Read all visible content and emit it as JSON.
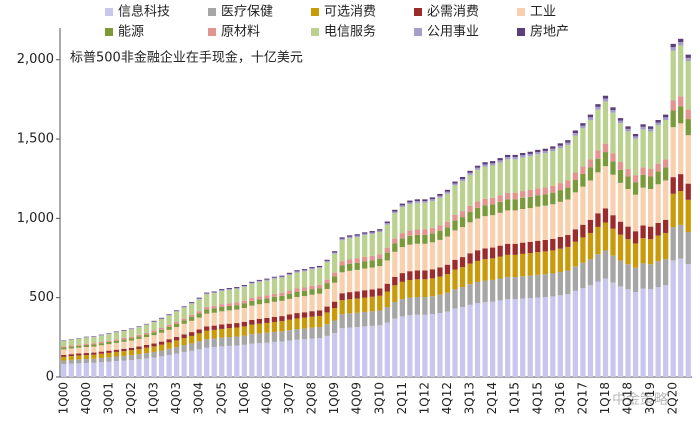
{
  "chart_data": {
    "type": "stacked_bar",
    "annotation": "标普500非金融企业在手现金，十亿美元",
    "watermark": "中金策略",
    "categories": [
      "1Q00",
      null,
      null,
      "4Q00",
      null,
      null,
      "3Q01",
      null,
      null,
      "2Q02",
      null,
      null,
      "1Q03",
      null,
      null,
      "4Q03",
      null,
      null,
      "3Q04",
      null,
      null,
      "2Q05",
      null,
      null,
      "1Q06",
      null,
      null,
      "4Q06",
      null,
      null,
      "3Q07",
      null,
      null,
      "2Q08",
      null,
      null,
      "1Q09",
      null,
      null,
      "4Q09",
      null,
      null,
      "3Q10",
      null,
      null,
      "2Q11",
      null,
      null,
      "1Q12",
      null,
      null,
      "4Q12",
      null,
      null,
      "3Q13",
      null,
      null,
      "2Q14",
      null,
      null,
      "1Q15",
      null,
      null,
      "4Q15",
      null,
      null,
      "3Q16",
      null,
      null,
      "2Q17",
      null,
      null,
      "1Q18",
      null,
      null,
      "4Q18",
      null,
      null,
      "3Q19",
      null,
      null,
      "2Q20",
      null,
      null
    ],
    "ylim": [
      0,
      2200
    ],
    "yticks": [
      0,
      500,
      {
        "value": 1000,
        "label": "1,000"
      },
      {
        "value": 1500,
        "label": "1,500"
      },
      {
        "value": 2000,
        "label": "2,000"
      }
    ],
    "series": [
      {
        "name": "信息科技",
        "color": "#c9c6ee",
        "values": [
          81,
          84,
          86,
          88,
          89,
          93,
          96,
          100,
          103,
          107,
          112,
          117,
          123,
          130,
          138,
          147,
          156,
          165,
          175,
          186,
          189,
          193,
          196,
          198,
          203,
          210,
          214,
          217,
          221,
          224,
          229,
          235,
          238,
          242,
          245,
          259,
          277,
          308,
          312,
          315,
          319,
          322,
          326,
          343,
          368,
          382,
          389,
          392,
          392,
          396,
          403,
          413,
          431,
          441,
          455,
          466,
          473,
          476,
          483,
          490,
          490,
          494,
          497,
          501,
          504,
          508,
          515,
          522,
          543,
          560,
          578,
          602,
          620,
          595,
          571,
          553,
          536,
          557,
          553,
          567,
          578,
          735,
          746,
          711
        ]
      },
      {
        "name": "医疗保健",
        "color": "#a6a6a6",
        "values": [
          23,
          24,
          25,
          25,
          26,
          27,
          28,
          29,
          30,
          31,
          32,
          34,
          35,
          37,
          40,
          42,
          45,
          47,
          50,
          53,
          54,
          55,
          56,
          57,
          58,
          60,
          61,
          62,
          63,
          64,
          66,
          67,
          68,
          69,
          70,
          74,
          79,
          88,
          89,
          90,
          91,
          92,
          93,
          98,
          105,
          109,
          111,
          112,
          112,
          113,
          115,
          118,
          123,
          126,
          130,
          133,
          135,
          136,
          138,
          140,
          140,
          141,
          142,
          143,
          144,
          145,
          147,
          149,
          155,
          160,
          165,
          172,
          177,
          170,
          163,
          158,
          153,
          159,
          158,
          162,
          165,
          210,
          213,
          203
        ]
      },
      {
        "name": "可选消费",
        "color": "#c99a0a",
        "values": [
          23,
          24,
          25,
          25,
          26,
          27,
          28,
          29,
          30,
          31,
          32,
          34,
          35,
          37,
          40,
          42,
          45,
          47,
          50,
          53,
          54,
          55,
          56,
          57,
          58,
          60,
          61,
          62,
          63,
          64,
          66,
          67,
          68,
          69,
          70,
          74,
          79,
          88,
          89,
          90,
          91,
          92,
          93,
          98,
          105,
          109,
          111,
          112,
          112,
          113,
          115,
          118,
          123,
          126,
          130,
          133,
          135,
          136,
          138,
          140,
          140,
          141,
          142,
          143,
          144,
          145,
          147,
          149,
          155,
          160,
          165,
          172,
          177,
          170,
          163,
          158,
          153,
          159,
          158,
          162,
          165,
          210,
          213,
          203
        ]
      },
      {
        "name": "必需消费",
        "color": "#9c2b2b",
        "values": [
          12,
          12,
          12,
          13,
          13,
          13,
          14,
          14,
          15,
          15,
          16,
          17,
          18,
          19,
          20,
          21,
          22,
          24,
          25,
          27,
          27,
          28,
          28,
          28,
          29,
          30,
          31,
          31,
          32,
          32,
          33,
          34,
          34,
          35,
          35,
          37,
          40,
          44,
          45,
          45,
          46,
          46,
          47,
          49,
          53,
          55,
          56,
          56,
          56,
          57,
          58,
          59,
          62,
          63,
          65,
          67,
          68,
          68,
          69,
          70,
          70,
          71,
          71,
          72,
          72,
          73,
          74,
          75,
          78,
          80,
          83,
          86,
          89,
          85,
          82,
          79,
          77,
          80,
          79,
          81,
          83,
          105,
          107,
          102
        ]
      },
      {
        "name": "工业",
        "color": "#f8d0ae",
        "values": [
          35,
          36,
          37,
          38,
          38,
          40,
          41,
          43,
          44,
          46,
          48,
          50,
          53,
          56,
          59,
          63,
          67,
          71,
          75,
          80,
          81,
          83,
          84,
          85,
          87,
          90,
          92,
          93,
          95,
          96,
          98,
          101,
          102,
          104,
          105,
          111,
          119,
          132,
          134,
          135,
          137,
          138,
          140,
          147,
          158,
          164,
          167,
          168,
          168,
          170,
          173,
          177,
          185,
          189,
          195,
          200,
          203,
          204,
          207,
          210,
          210,
          212,
          213,
          215,
          216,
          218,
          221,
          224,
          233,
          240,
          248,
          258,
          266,
          255,
          245,
          237,
          230,
          239,
          237,
          243,
          248,
          315,
          320,
          305
        ]
      },
      {
        "name": "能源",
        "color": "#7b9b3b",
        "values": [
          12,
          12,
          12,
          13,
          13,
          13,
          14,
          14,
          15,
          15,
          16,
          17,
          18,
          19,
          20,
          21,
          22,
          24,
          25,
          27,
          27,
          28,
          28,
          28,
          29,
          30,
          31,
          31,
          32,
          32,
          33,
          34,
          34,
          35,
          35,
          37,
          40,
          44,
          45,
          45,
          46,
          46,
          47,
          49,
          53,
          55,
          56,
          56,
          56,
          57,
          58,
          59,
          62,
          63,
          65,
          67,
          68,
          68,
          69,
          70,
          70,
          71,
          71,
          72,
          72,
          73,
          74,
          75,
          78,
          80,
          83,
          86,
          89,
          85,
          82,
          79,
          77,
          80,
          79,
          81,
          83,
          105,
          107,
          102
        ]
      },
      {
        "name": "原材料",
        "color": "#e3948f",
        "values": [
          7,
          7,
          7,
          8,
          8,
          8,
          8,
          9,
          9,
          9,
          10,
          10,
          11,
          11,
          12,
          13,
          13,
          14,
          15,
          16,
          16,
          17,
          17,
          17,
          17,
          18,
          18,
          19,
          19,
          19,
          20,
          20,
          20,
          21,
          21,
          22,
          24,
          26,
          27,
          27,
          27,
          28,
          28,
          29,
          32,
          33,
          33,
          34,
          34,
          34,
          35,
          35,
          37,
          38,
          39,
          40,
          41,
          41,
          41,
          42,
          42,
          42,
          43,
          43,
          43,
          44,
          44,
          45,
          47,
          48,
          50,
          52,
          53,
          51,
          49,
          47,
          46,
          48,
          47,
          49,
          50,
          63,
          64,
          61
        ]
      },
      {
        "name": "电信服务",
        "color": "#bad190",
        "values": [
          35,
          36,
          37,
          38,
          38,
          40,
          41,
          43,
          44,
          46,
          48,
          50,
          53,
          56,
          59,
          63,
          67,
          71,
          75,
          80,
          81,
          83,
          84,
          85,
          87,
          90,
          92,
          93,
          95,
          96,
          98,
          101,
          102,
          104,
          105,
          111,
          119,
          132,
          134,
          135,
          137,
          138,
          140,
          147,
          158,
          164,
          167,
          168,
          168,
          170,
          173,
          177,
          185,
          189,
          195,
          200,
          203,
          204,
          207,
          210,
          210,
          212,
          213,
          215,
          216,
          218,
          221,
          224,
          233,
          240,
          248,
          258,
          266,
          255,
          245,
          237,
          230,
          239,
          237,
          243,
          248,
          315,
          320,
          305
        ]
      },
      {
        "name": "公用事业",
        "color": "#a59ec9",
        "values": [
          2,
          2,
          2,
          3,
          3,
          3,
          3,
          3,
          3,
          3,
          3,
          3,
          4,
          4,
          4,
          4,
          4,
          5,
          5,
          5,
          5,
          6,
          6,
          6,
          6,
          6,
          6,
          6,
          6,
          6,
          7,
          7,
          7,
          7,
          7,
          7,
          8,
          9,
          9,
          9,
          9,
          9,
          9,
          10,
          11,
          11,
          11,
          11,
          11,
          11,
          12,
          12,
          12,
          13,
          13,
          13,
          14,
          14,
          14,
          14,
          14,
          14,
          14,
          14,
          14,
          15,
          15,
          15,
          16,
          16,
          17,
          17,
          18,
          17,
          16,
          16,
          15,
          16,
          16,
          16,
          17,
          21,
          21,
          20
        ]
      },
      {
        "name": "房地产",
        "color": "#5c3e7b",
        "values": [
          2,
          2,
          2,
          3,
          3,
          3,
          3,
          3,
          3,
          3,
          3,
          3,
          4,
          4,
          4,
          4,
          4,
          5,
          5,
          5,
          5,
          6,
          6,
          6,
          6,
          6,
          6,
          6,
          6,
          6,
          7,
          7,
          7,
          7,
          7,
          7,
          8,
          9,
          9,
          9,
          9,
          9,
          9,
          10,
          11,
          11,
          11,
          11,
          11,
          11,
          12,
          12,
          12,
          13,
          13,
          13,
          14,
          14,
          14,
          14,
          14,
          14,
          14,
          14,
          14,
          15,
          15,
          15,
          16,
          16,
          17,
          17,
          18,
          17,
          16,
          16,
          15,
          16,
          16,
          16,
          17,
          21,
          21,
          20
        ]
      }
    ]
  }
}
